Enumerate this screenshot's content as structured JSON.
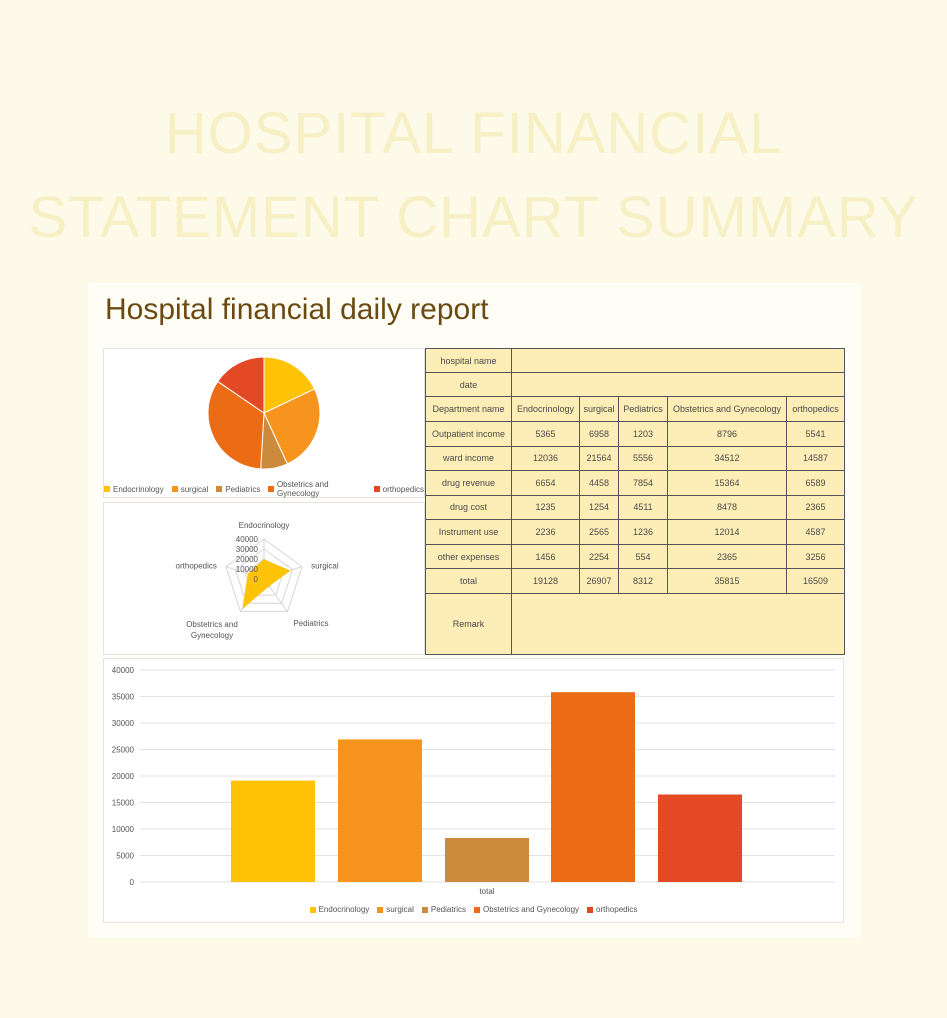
{
  "hero": {
    "line1": "HOSPITAL FINANCIAL",
    "line2": "STATEMENT CHART SUMMARY"
  },
  "report_title": "Hospital financial daily report",
  "colors": {
    "Endocrinology": "#fec307",
    "surgical": "#f7941d",
    "Pediatrics": "#cc8a3c",
    "Obstetrics and Gynecology": "#ec6c16",
    "orthopedics": "#e44926"
  },
  "table": {
    "hospital_name_label": "hospital name",
    "hospital_name_value": "",
    "date_label": "date",
    "date_value": "",
    "department_label": "Department name",
    "departments": [
      "Endocrinology",
      "surgical",
      "Pediatrics",
      "Obstetrics and Gynecology",
      "orthopedics"
    ],
    "rows": [
      {
        "label": "Outpatient income",
        "values": [
          "5365",
          "6958",
          "1203",
          "8796",
          "5541"
        ]
      },
      {
        "label": "ward income",
        "values": [
          "12036",
          "21564",
          "5556",
          "34512",
          "14587"
        ]
      },
      {
        "label": "drug revenue",
        "values": [
          "6654",
          "4458",
          "7854",
          "15364",
          "6589"
        ]
      },
      {
        "label": "drug cost",
        "values": [
          "1235",
          "1254",
          "4511",
          "8478",
          "2365"
        ]
      },
      {
        "label": "Instrument use",
        "values": [
          "2236",
          "2565",
          "1236",
          "12014",
          "4587"
        ]
      },
      {
        "label": "other expenses",
        "values": [
          "1456",
          "2254",
          "554",
          "2365",
          "3256"
        ]
      },
      {
        "label": "total",
        "values": [
          "19128",
          "26907",
          "8312",
          "35815",
          "16509"
        ]
      }
    ],
    "remark_label": "Remark",
    "remark_value": ""
  },
  "chart_data": [
    {
      "type": "pie",
      "labels": [
        "Endocrinology",
        "surgical",
        "Pediatrics",
        "Obstetrics and Gynecology",
        "orthopedics"
      ],
      "values": [
        19128,
        26907,
        8312,
        35815,
        16509
      ],
      "legend": "bottom"
    },
    {
      "type": "radar",
      "axes": [
        "Endocrinology",
        "surgical",
        "Pediatrics",
        "Obstetrics and Gynecology",
        "orthopedics"
      ],
      "values": [
        19128,
        26907,
        8312,
        35815,
        16509
      ],
      "ticks": [
        "40000",
        "30000",
        "20000",
        "10000",
        "0"
      ],
      "range": [
        0,
        40000
      ]
    },
    {
      "type": "bar",
      "categories": [
        "total"
      ],
      "series": [
        {
          "name": "Endocrinology",
          "values": [
            19128
          ]
        },
        {
          "name": "surgical",
          "values": [
            26907
          ]
        },
        {
          "name": "Pediatrics",
          "values": [
            8312
          ]
        },
        {
          "name": "Obstetrics and Gynecology",
          "values": [
            35815
          ]
        },
        {
          "name": "orthopedics",
          "values": [
            16509
          ]
        }
      ],
      "yticks": [
        "40000",
        "35000",
        "30000",
        "25000",
        "20000",
        "15000",
        "10000",
        "5000",
        "0"
      ],
      "ylim": [
        0,
        40000
      ],
      "xlabel": "total",
      "grid": true,
      "legend": "bottom"
    }
  ]
}
